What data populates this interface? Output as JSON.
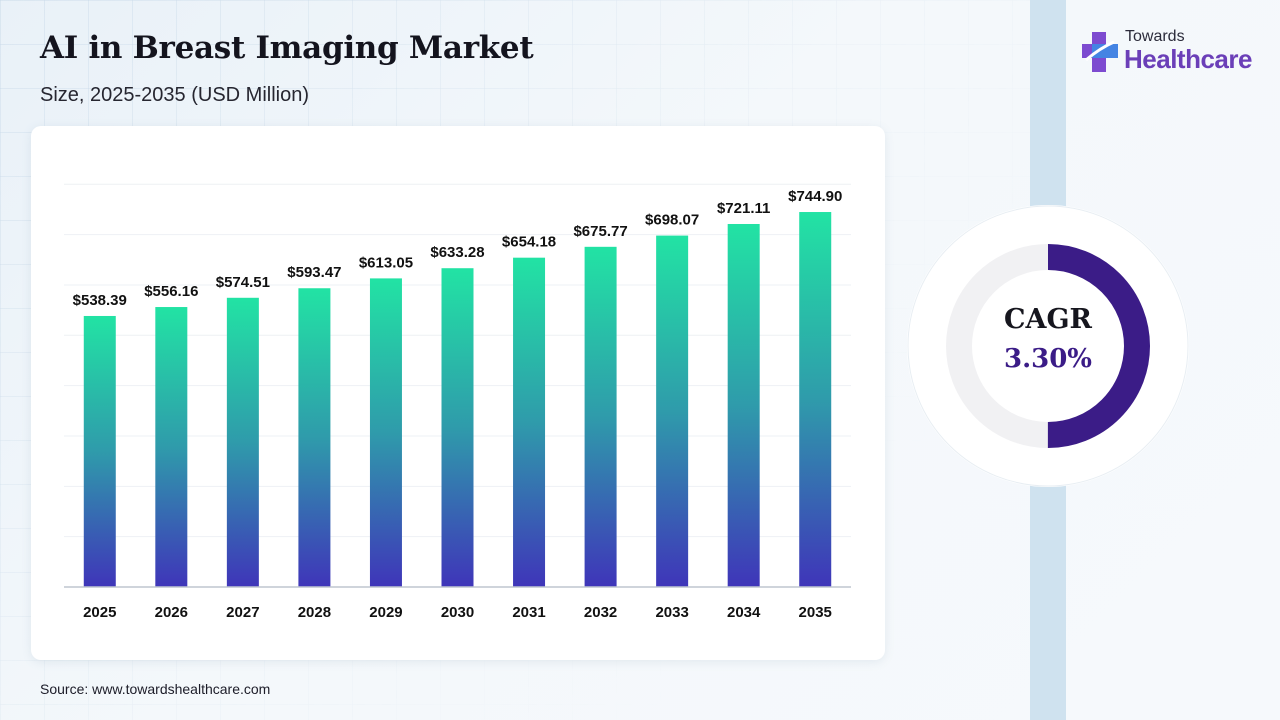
{
  "header": {
    "title": "AI in Breast Imaging Market",
    "subtitle": "Size, 2025-2035 (USD Million)"
  },
  "brand": {
    "small": "Towards",
    "big": "Healthcare",
    "icon": "cross-icon",
    "colors": {
      "primary": "#6b3fb8",
      "secondary": "#3a8ee6"
    }
  },
  "cagr": {
    "label": "CAGR",
    "value": "3.30%",
    "fraction": 0.5,
    "ring_color": "#3b1c87",
    "track_color": "#f1f1f3"
  },
  "source": "Source: www.towardshealthcare.com",
  "chart_data": {
    "type": "bar",
    "title": "AI in Breast Imaging Market",
    "subtitle": "Size, 2025-2035 (USD Million)",
    "xlabel": "",
    "ylabel": "",
    "categories": [
      "2025",
      "2026",
      "2027",
      "2028",
      "2029",
      "2030",
      "2031",
      "2032",
      "2033",
      "2034",
      "2035"
    ],
    "values": [
      538.39,
      556.16,
      574.51,
      593.47,
      613.05,
      633.28,
      654.18,
      675.77,
      698.07,
      721.11,
      744.9
    ],
    "value_labels": [
      "$538.39",
      "$556.16",
      "$574.51",
      "$593.47",
      "$613.05",
      "$633.28",
      "$654.18",
      "$675.77",
      "$698.07",
      "$721.11",
      "$744.90"
    ],
    "ylim": [
      0,
      1000
    ],
    "grid": true,
    "legend": "none",
    "colors": {
      "bar_top": "#22e3a4",
      "bar_mid": "#2f9bab",
      "bar_bottom": "#3f35b9"
    }
  }
}
